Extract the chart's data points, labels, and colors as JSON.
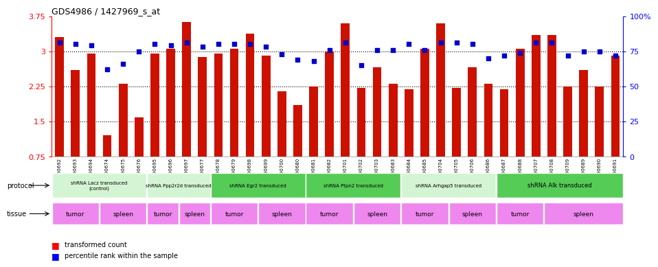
{
  "title": "GDS4986 / 1427969_s_at",
  "sample_ids": [
    "GSM1290692",
    "GSM1290693",
    "GSM1290694",
    "GSM1290674",
    "GSM1290675",
    "GSM1290676",
    "GSM1290695",
    "GSM1290696",
    "GSM1290697",
    "GSM1290677",
    "GSM1290678",
    "GSM1290679",
    "GSM1290698",
    "GSM1290699",
    "GSM1290700",
    "GSM1290680",
    "GSM1290681",
    "GSM1290682",
    "GSM1290701",
    "GSM1290702",
    "GSM1290703",
    "GSM1290683",
    "GSM1290684",
    "GSM1290685",
    "GSM1290704",
    "GSM1290705",
    "GSM1290706",
    "GSM1290686",
    "GSM1290687",
    "GSM1290688",
    "GSM1290707",
    "GSM1290708",
    "GSM1290709",
    "GSM1290689",
    "GSM1290690",
    "GSM1290691"
  ],
  "bar_values": [
    3.3,
    2.6,
    2.95,
    1.2,
    2.3,
    1.58,
    2.95,
    3.05,
    3.62,
    2.88,
    2.95,
    3.05,
    3.38,
    2.9,
    2.15,
    1.85,
    2.25,
    3.0,
    3.6,
    2.22,
    2.65,
    2.3,
    2.18,
    3.05,
    3.6,
    2.22,
    2.65,
    2.3,
    2.18,
    3.05,
    3.35,
    3.35,
    2.25,
    2.6,
    2.25,
    2.9
  ],
  "percentile_values": [
    81,
    80,
    79,
    62,
    66,
    75,
    80,
    79,
    81,
    78,
    80,
    80,
    80,
    78,
    73,
    69,
    68,
    76,
    81,
    65,
    76,
    76,
    80,
    76,
    81,
    81,
    80,
    70,
    72,
    74,
    81,
    81,
    72,
    75,
    75,
    72
  ],
  "protocols": [
    {
      "start": 0,
      "end": 6,
      "label": "shRNA Lacz transduced\n(control)",
      "color": "#d4f5d4"
    },
    {
      "start": 6,
      "end": 10,
      "label": "shRNA Ppp2r2d transduced",
      "color": "#d4f5d4"
    },
    {
      "start": 10,
      "end": 16,
      "label": "shRNA Egr2 transduced",
      "color": "#55cc55"
    },
    {
      "start": 16,
      "end": 22,
      "label": "shRNA Ptpn2 transduced",
      "color": "#55cc55"
    },
    {
      "start": 22,
      "end": 28,
      "label": "shRNA Arhgap5 transduced",
      "color": "#d4f5d4"
    },
    {
      "start": 28,
      "end": 36,
      "label": "shRNA Alk transduced",
      "color": "#55cc55"
    }
  ],
  "tissues": [
    {
      "start": 0,
      "end": 3,
      "label": "tumor",
      "color": "#ee88ee"
    },
    {
      "start": 3,
      "end": 6,
      "label": "spleen",
      "color": "#ee88ee"
    },
    {
      "start": 6,
      "end": 8,
      "label": "tumor",
      "color": "#ee88ee"
    },
    {
      "start": 8,
      "end": 10,
      "label": "spleen",
      "color": "#ee88ee"
    },
    {
      "start": 10,
      "end": 13,
      "label": "tumor",
      "color": "#ee88ee"
    },
    {
      "start": 13,
      "end": 16,
      "label": "spleen",
      "color": "#ee88ee"
    },
    {
      "start": 16,
      "end": 19,
      "label": "tumor",
      "color": "#ee88ee"
    },
    {
      "start": 19,
      "end": 22,
      "label": "spleen",
      "color": "#ee88ee"
    },
    {
      "start": 22,
      "end": 25,
      "label": "tumor",
      "color": "#ee88ee"
    },
    {
      "start": 25,
      "end": 28,
      "label": "spleen",
      "color": "#ee88ee"
    },
    {
      "start": 28,
      "end": 31,
      "label": "tumor",
      "color": "#ee88ee"
    },
    {
      "start": 31,
      "end": 36,
      "label": "spleen",
      "color": "#ee88ee"
    }
  ],
  "ylim_left": [
    0.75,
    3.75
  ],
  "ylim_right": [
    0,
    100
  ],
  "yticks_left": [
    0.75,
    1.5,
    2.25,
    3.0,
    3.75
  ],
  "ytick_labels_left": [
    "0.75",
    "1.5",
    "2.25",
    "3",
    "3.75"
  ],
  "yticks_right": [
    0,
    25,
    50,
    75,
    100
  ],
  "ytick_labels_right": [
    "0",
    "25",
    "50",
    "75",
    "100%"
  ],
  "grid_lines": [
    1.5,
    2.25,
    3.0
  ],
  "bar_color": "#cc1100",
  "dot_color": "#0000cc",
  "xtick_bg": "#c0c0c0"
}
